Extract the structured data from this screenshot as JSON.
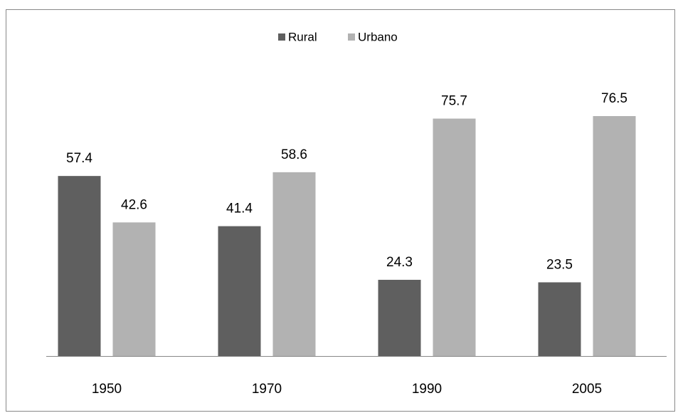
{
  "chart_data": {
    "type": "bar",
    "categories": [
      "1950",
      "1970",
      "1990",
      "2005"
    ],
    "series": [
      {
        "name": "Rural",
        "color": "#5f5f5f",
        "values": [
          57.4,
          41.4,
          24.3,
          23.5
        ]
      },
      {
        "name": "Urbano",
        "color": "#b2b2b2",
        "values": [
          42.6,
          58.6,
          75.7,
          76.5
        ]
      }
    ],
    "legend": "top"
  }
}
